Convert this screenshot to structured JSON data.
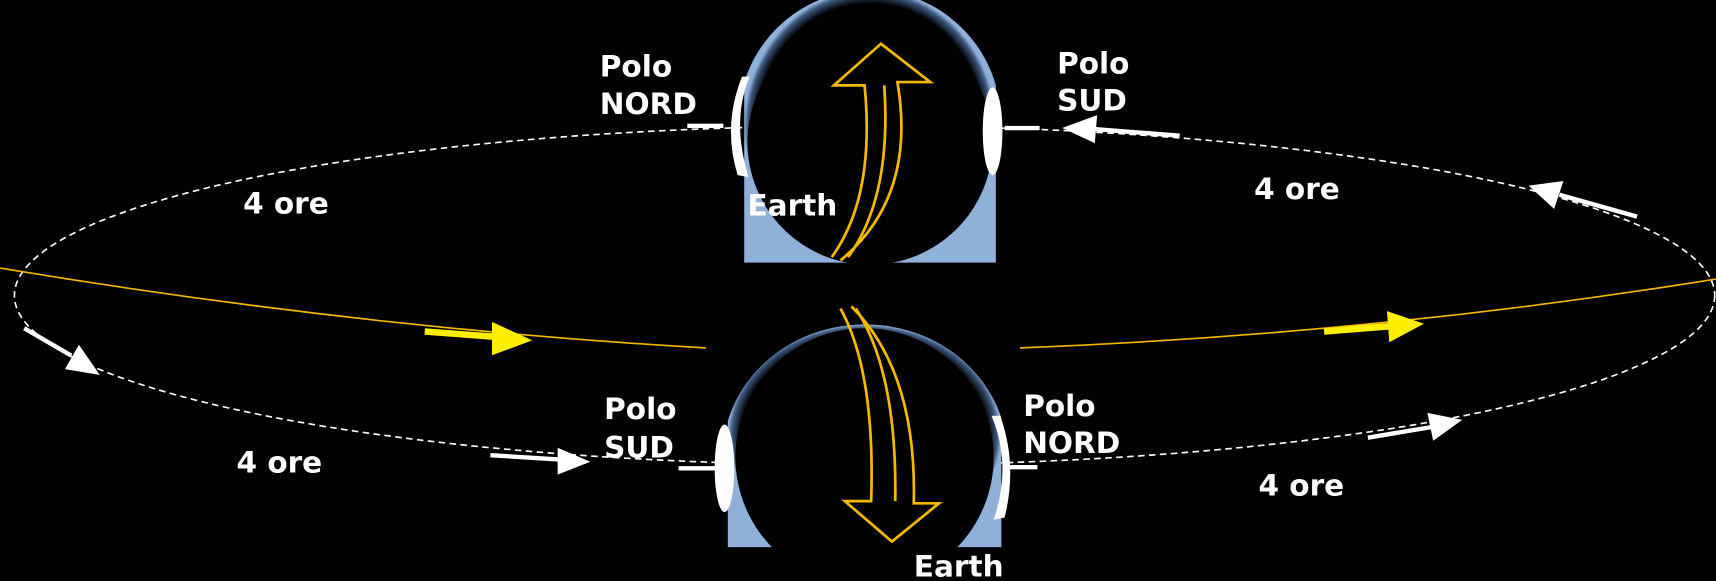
{
  "earths": [
    {
      "label": "Earth",
      "left_pole": [
        "Polo",
        "NORD"
      ],
      "right_pole": [
        "Polo",
        "SUD"
      ]
    },
    {
      "label": "Earth",
      "left_pole": [
        "Polo",
        "SUD"
      ],
      "right_pole": [
        "Polo",
        "NORD"
      ]
    }
  ],
  "orbit_labels": [
    "4 ore",
    "4 ore",
    "4 ore",
    "4 ore"
  ]
}
